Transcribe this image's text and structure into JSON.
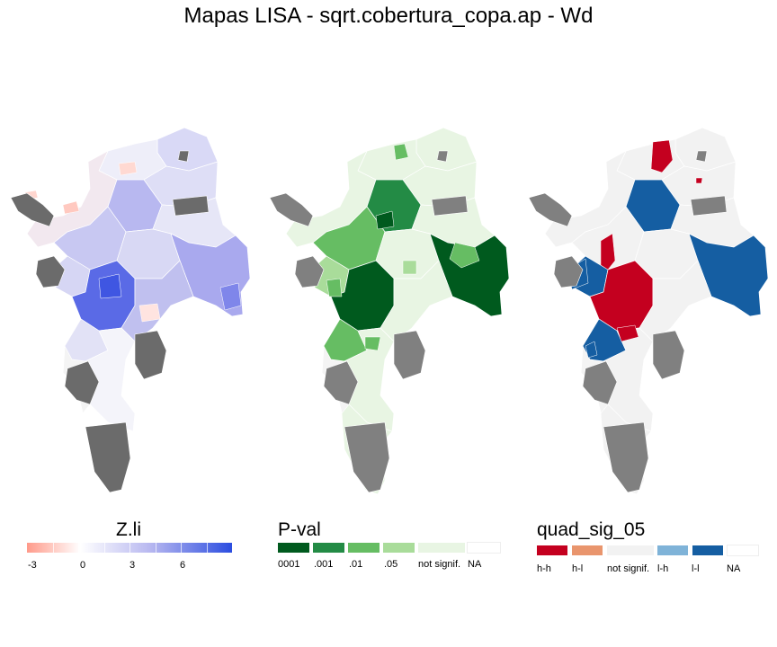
{
  "title": "Mapas LISA - sqrt.cobertura_copa.ap - Wd",
  "colors": {
    "background": "#ffffff",
    "na_fill": "#808080",
    "na_fill_dark": "#6b6b6b",
    "border": "#ffffff"
  },
  "zli_legend": {
    "title": "Z.li",
    "labels": [
      "-3",
      "0",
      "3",
      "6"
    ],
    "gradient": [
      "#ff9a8a",
      "#ffffff",
      "#b8b8f0",
      "#2b4de0"
    ]
  },
  "pval_legend": {
    "title": "P-val",
    "items": [
      {
        "label": "0001",
        "color": "#005a1e"
      },
      {
        "label": ".001",
        "color": "#238b45"
      },
      {
        "label": ".01",
        "color": "#66bd63"
      },
      {
        "label": ".05",
        "color": "#a9dc9a"
      },
      {
        "label": "not signif.",
        "color": "#e8f5e3"
      },
      {
        "label": "NA",
        "color": "#ffffff"
      }
    ]
  },
  "quad_legend": {
    "title": "quad_sig_05",
    "items": [
      {
        "label": "h-h",
        "color": "#c4001f"
      },
      {
        "label": "h-l",
        "color": "#e9956d"
      },
      {
        "label": "not signif.",
        "color": "#f2f2f2"
      },
      {
        "label": "l-h",
        "color": "#7fb3d8"
      },
      {
        "label": "l-l",
        "color": "#155ea2"
      },
      {
        "label": "NA",
        "color": "#ffffff"
      }
    ]
  }
}
